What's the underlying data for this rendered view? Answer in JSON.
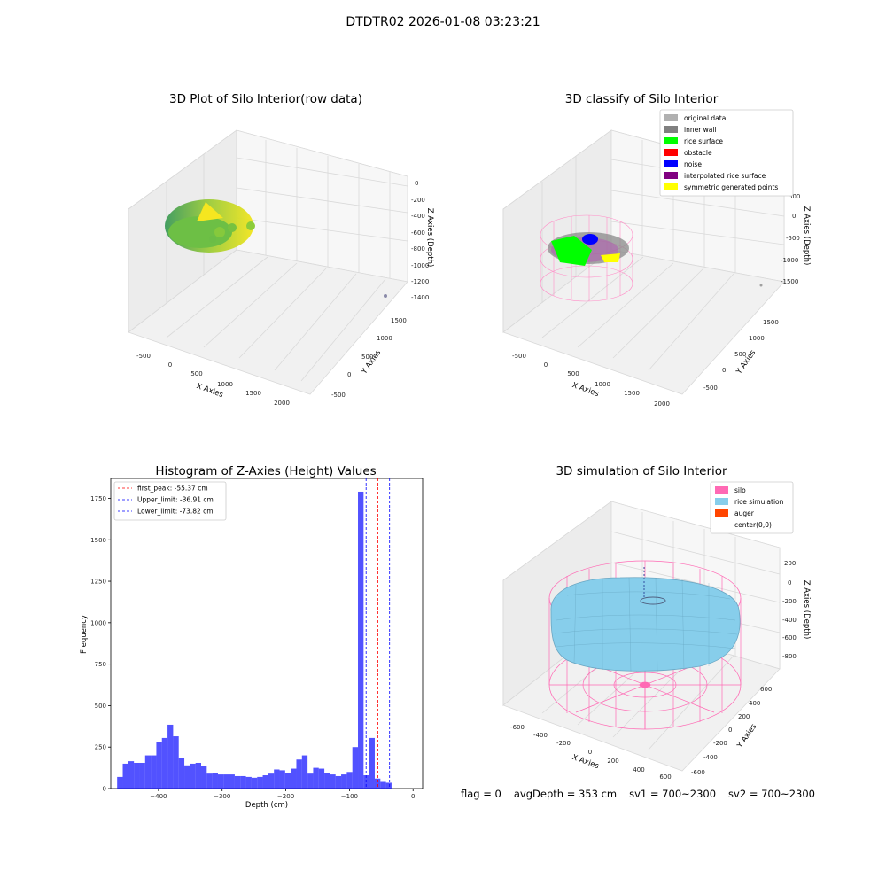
{
  "figure": {
    "title": "DTDTR02 2026-01-08 03:23:21",
    "footer": {
      "flag": "flag = 0",
      "avg_depth": "avgDepth = 353 cm",
      "sv1": "sv1 = 700~2300",
      "sv2": "sv2 = 700~2300"
    }
  },
  "chart_data": [
    {
      "type": "scatter",
      "projection": "3d",
      "title": "3D Plot of Silo Interior(row data)",
      "xlabel": "X Axies",
      "ylabel": "Y Axies",
      "zlabel": "Z Axies (Depth)",
      "x_ticks": [
        "-500",
        "0",
        "500",
        "1000",
        "1500",
        "2000"
      ],
      "y_ticks": [
        "-500",
        "0",
        "500",
        "1000",
        "1500"
      ],
      "z_ticks": [
        "0",
        "-200",
        "-400",
        "-600",
        "-800",
        "-1000",
        "-1200",
        "-1400"
      ],
      "colormap": "viridis",
      "grid": true
    },
    {
      "type": "scatter",
      "projection": "3d",
      "title": "3D classify of Silo Interior",
      "xlabel": "X Axies",
      "ylabel": "Y Axies",
      "zlabel": "Z Axies (Depth)",
      "x_ticks": [
        "-500",
        "0",
        "500",
        "1000",
        "1500",
        "2000"
      ],
      "y_ticks": [
        "-500",
        "0",
        "500",
        "1000",
        "1500"
      ],
      "z_ticks": [
        "500",
        "0",
        "-500",
        "-1000",
        "-1500"
      ],
      "legend_position": "top-right",
      "legend": [
        {
          "label": "original data",
          "color": "#b0b0b0"
        },
        {
          "label": "inner wall",
          "color": "#808080"
        },
        {
          "label": "rice surface",
          "color": "#00ff00"
        },
        {
          "label": "obstacle",
          "color": "#ff0000"
        },
        {
          "label": "noise",
          "color": "#0000ff"
        },
        {
          "label": "interpolated rice surface",
          "color": "#800080"
        },
        {
          "label": "symmetric generated points",
          "color": "#ffff00"
        }
      ],
      "grid": true
    },
    {
      "type": "bar",
      "title": "Histogram of Z-Axies (Height) Values",
      "xlabel": "Depth (cm)",
      "ylabel": "Frequency",
      "xlim": [
        -475,
        15
      ],
      "ylim": [
        0,
        1870
      ],
      "x_ticks": [
        -400,
        -300,
        -200,
        -100,
        0
      ],
      "y_ticks": [
        0,
        250,
        500,
        750,
        1000,
        1250,
        1500,
        1750
      ],
      "bin_start": -465,
      "bin_width": 8.8,
      "values": [
        70,
        150,
        165,
        155,
        155,
        200,
        200,
        280,
        305,
        385,
        315,
        185,
        140,
        150,
        155,
        135,
        90,
        95,
        85,
        85,
        85,
        75,
        75,
        70,
        65,
        70,
        80,
        90,
        115,
        110,
        95,
        120,
        175,
        200,
        90,
        125,
        120,
        95,
        85,
        75,
        85,
        100,
        250,
        1790,
        80,
        305,
        60,
        40,
        35
      ],
      "bar_color": "#0000ff",
      "vlines": [
        {
          "label": "first_peak: -55.37 cm",
          "x": -55.37,
          "color": "#ff0000"
        },
        {
          "label": "Upper_limit: -36.91 cm",
          "x": -36.91,
          "color": "#0000ff"
        },
        {
          "label": "Lower_limit: -73.82 cm",
          "x": -73.82,
          "color": "#0000ff"
        }
      ],
      "legend_position": "top-left",
      "grid": false
    },
    {
      "type": "surface",
      "projection": "3d",
      "title": "3D simulation of Silo Interior",
      "xlabel": "X Axies",
      "ylabel": "Y Axies",
      "zlabel": "Z Axies (Depth)",
      "x_ticks": [
        "-600",
        "-400",
        "-200",
        "0",
        "200",
        "400",
        "600"
      ],
      "y_ticks": [
        "600",
        "400",
        "200",
        "0",
        "-200",
        "-400",
        "-600"
      ],
      "z_ticks": [
        "200",
        "0",
        "-200",
        "-400",
        "-600",
        "-800"
      ],
      "legend_position": "top-right",
      "legend": [
        {
          "label": "silo",
          "color": "#ff69b4"
        },
        {
          "label": "rice simulation",
          "color": "#87ceeb"
        },
        {
          "label": "auger",
          "color": "#ff4500"
        },
        {
          "label": "center(0,0)",
          "color": "#ffffff"
        }
      ],
      "grid": true
    }
  ]
}
